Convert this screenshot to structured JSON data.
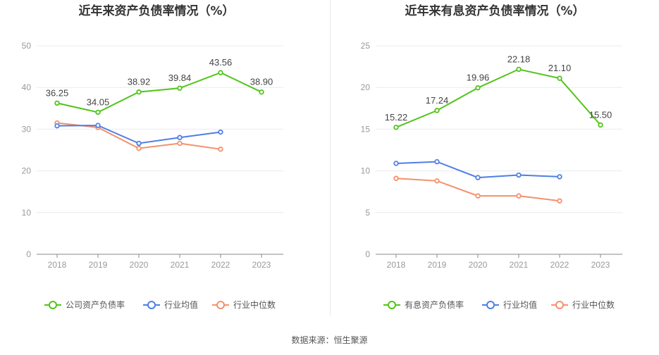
{
  "source": "数据来源：恒生聚源",
  "colors": {
    "green": "#52c41a",
    "blue": "#4f7ee6",
    "orange": "#f4906b",
    "grid": "#e9ecf2",
    "axis": "#888888",
    "divider": "#e8e8e8"
  },
  "chart_data": [
    {
      "type": "line",
      "title": "近年来资产负债率情况（%）",
      "categories": [
        "2018",
        "2019",
        "2020",
        "2021",
        "2022",
        "2023"
      ],
      "ylim": [
        0,
        50
      ],
      "yticks": [
        0,
        10,
        20,
        30,
        40,
        50
      ],
      "grid": true,
      "legend_position": "bottom",
      "series": [
        {
          "name": "公司资产负债率",
          "color": "#52c41a",
          "labels": true,
          "values": [
            36.25,
            34.05,
            38.92,
            39.84,
            43.56,
            38.9
          ]
        },
        {
          "name": "行业均值",
          "color": "#4f7ee6",
          "labels": false,
          "values": [
            30.8,
            30.9,
            26.6,
            28.0,
            29.3,
            null
          ]
        },
        {
          "name": "行业中位数",
          "color": "#f4906b",
          "labels": false,
          "values": [
            31.5,
            30.4,
            25.4,
            26.6,
            25.2,
            null
          ]
        }
      ]
    },
    {
      "type": "line",
      "title": "近年来有息资产负债率情况（%）",
      "categories": [
        "2018",
        "2019",
        "2020",
        "2021",
        "2022",
        "2023"
      ],
      "ylim": [
        0,
        25
      ],
      "yticks": [
        0,
        5,
        10,
        15,
        20,
        25
      ],
      "grid": true,
      "legend_position": "bottom",
      "series": [
        {
          "name": "有息资产负债率",
          "color": "#52c41a",
          "labels": true,
          "values": [
            15.22,
            17.24,
            19.96,
            22.18,
            21.1,
            15.5
          ]
        },
        {
          "name": "行业均值",
          "color": "#4f7ee6",
          "labels": false,
          "values": [
            10.9,
            11.1,
            9.2,
            9.5,
            9.3,
            null
          ]
        },
        {
          "name": "行业中位数",
          "color": "#f4906b",
          "labels": false,
          "values": [
            9.1,
            8.8,
            7.0,
            7.0,
            6.4,
            null
          ]
        }
      ]
    }
  ]
}
